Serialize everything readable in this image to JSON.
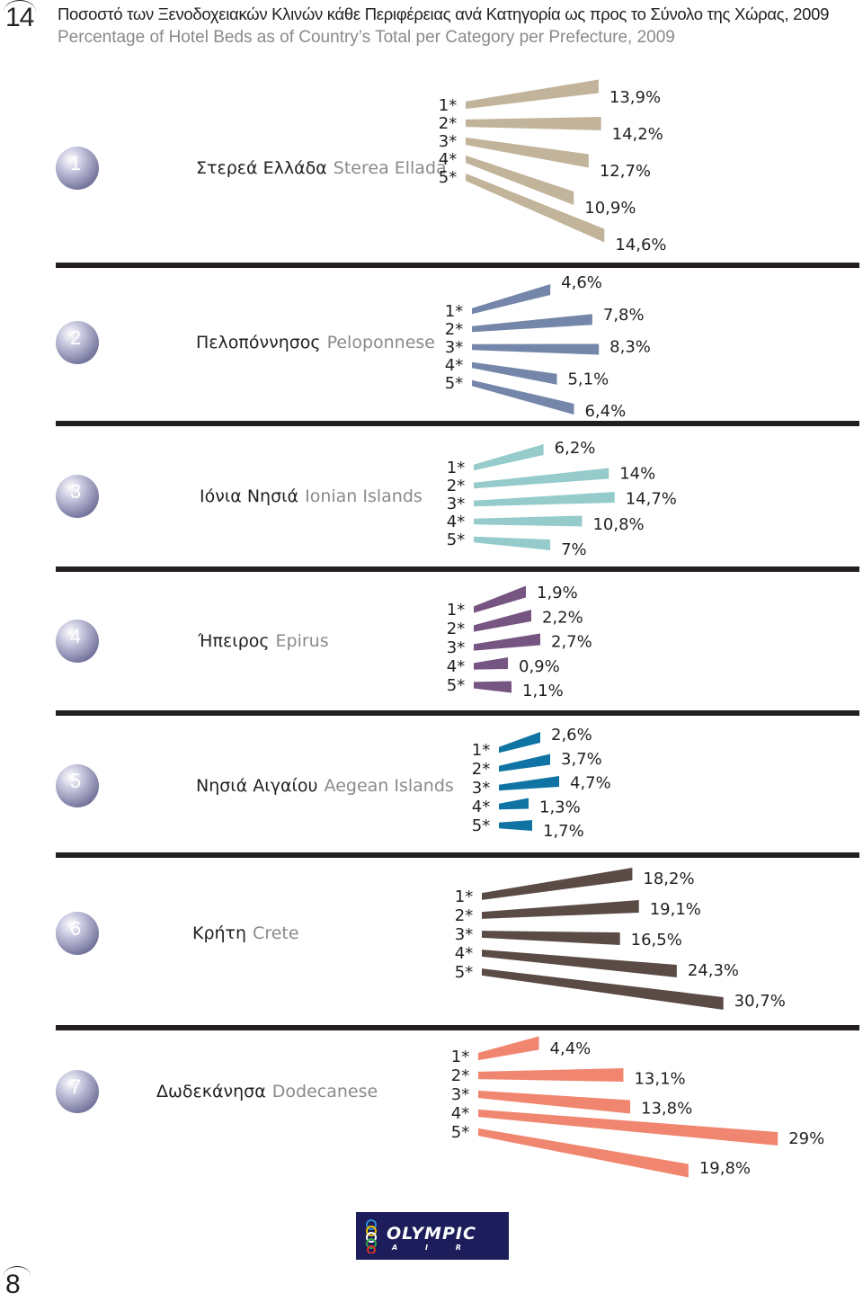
{
  "page_number": "14",
  "footer_page_number": "8",
  "title_greek": "Ποσοστό των Ξενοδοχειακών Κλινών κάθε Περιφέρειας ανά Κατηγορία ως προς το Σύνολο της Χώρας, 2009",
  "title_english": "Percentage of Hotel Beds as of Country’s Total per Category per Prefecture, 2009",
  "logo": {
    "text": "OLYMPIC",
    "subtext": "A I R",
    "background": "#1c1d5a"
  },
  "chart_data": {
    "type": "bar",
    "title": "Percentage of Hotel Beds as of Country’s Total per Category per Prefecture, 2009",
    "categories": [
      "1*",
      "2*",
      "3*",
      "4*",
      "5*"
    ],
    "unit": "%",
    "regions": [
      {
        "number": "1",
        "name_gr": "Στερεά Ελλάδα",
        "name_en": "Sterea Ellada",
        "color": "#c2b49a",
        "labels": [
          "13,9%",
          "14,2%",
          "12,7%",
          "10,9%",
          "14,6%"
        ],
        "values": [
          13.9,
          14.2,
          12.7,
          10.9,
          14.6
        ]
      },
      {
        "number": "2",
        "name_gr": "Πελοπόννησος",
        "name_en": "Peloponnese",
        "color": "#7486a9",
        "labels": [
          "4,6%",
          "7,8%",
          "8,3%",
          "5,1%",
          "6,4%"
        ],
        "values": [
          4.6,
          7.8,
          8.3,
          5.1,
          6.4
        ]
      },
      {
        "number": "3",
        "name_gr": "Ιόνια Νησιά",
        "name_en": "Ionian Islands",
        "color": "#96cbcb",
        "labels": [
          "6,2%",
          "14%",
          "14,7%",
          "10,8%",
          "7%"
        ],
        "values": [
          6.2,
          14.0,
          14.7,
          10.8,
          7.0
        ]
      },
      {
        "number": "4",
        "name_gr": "Ήπειρος",
        "name_en": "Epirus",
        "color": "#775583",
        "labels": [
          "1,9%",
          "2,2%",
          "2,7%",
          "0,9%",
          "1,1%"
        ],
        "values": [
          1.9,
          2.2,
          2.7,
          0.9,
          1.1
        ]
      },
      {
        "number": "5",
        "name_gr": "Νησιά Αιγαίου",
        "name_en": "Aegean Islands",
        "color": "#0f74a4",
        "labels": [
          "2,6%",
          "3,7%",
          "4,7%",
          "1,3%",
          "1,7%"
        ],
        "values": [
          2.6,
          3.7,
          4.7,
          1.3,
          1.7
        ]
      },
      {
        "number": "6",
        "name_gr": "Κρήτη",
        "name_en": "Crete",
        "color": "#5a4b45",
        "labels": [
          "18,2%",
          "19,1%",
          "16,5%",
          "24,3%",
          "30,7%"
        ],
        "values": [
          18.2,
          19.1,
          16.5,
          24.3,
          30.7
        ]
      },
      {
        "number": "7",
        "name_gr": "Δωδεκάνησα",
        "name_en": "Dodecanese",
        "color": "#f18670",
        "labels": [
          "4,4%",
          "13,1%",
          "13,8%",
          "29%",
          "19,8%"
        ],
        "values": [
          4.4,
          13.1,
          13.8,
          29.0,
          19.8
        ]
      }
    ]
  }
}
